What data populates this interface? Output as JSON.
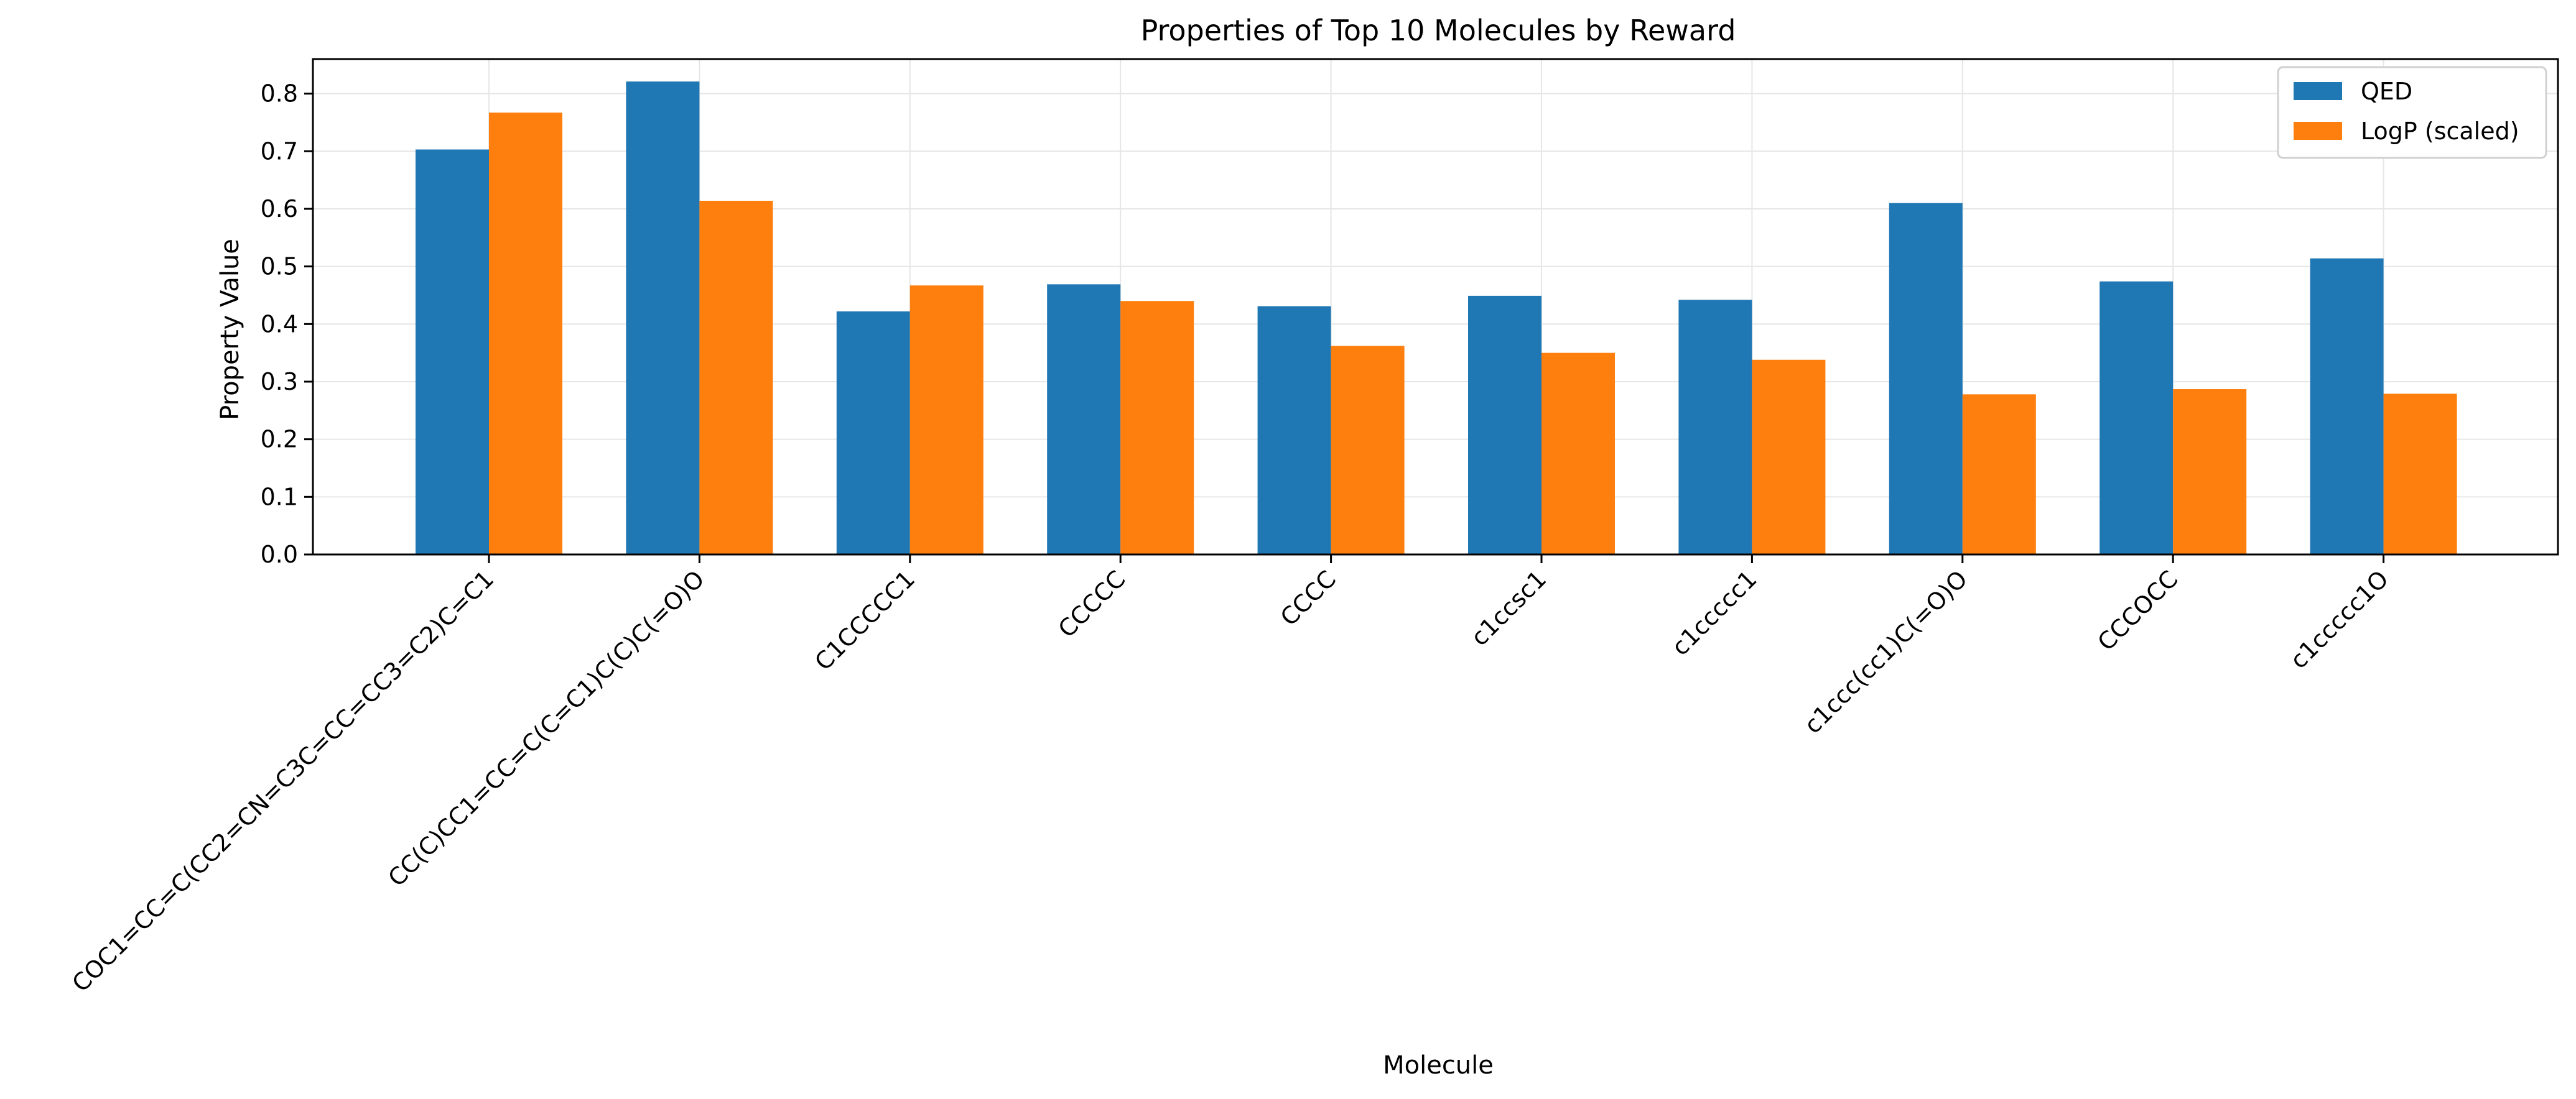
{
  "chart_data": {
    "type": "bar",
    "title": "Properties of Top 10 Molecules by Reward",
    "xlabel": "Molecule",
    "ylabel": "Property Value",
    "categories": [
      "COC1=CC=C(CC2=CN=C3C=CC=CC3=C2)C=C1",
      "CC(C)CC1=CC=C(C=C1)C(C)C(=O)O",
      "C1CCCCC1",
      "CCCCC",
      "CCCC",
      "c1ccsc1",
      "c1ccccc1",
      "c1ccc(cc1)C(=O)O",
      "CCCOCC",
      "c1ccccc1O"
    ],
    "series": [
      {
        "name": "QED",
        "color": "#1f77b4",
        "values": [
          0.703,
          0.821,
          0.422,
          0.469,
          0.431,
          0.449,
          0.442,
          0.61,
          0.474,
          0.514
        ]
      },
      {
        "name": "LogP (scaled)",
        "color": "#ff7f0e",
        "values": [
          0.767,
          0.614,
          0.467,
          0.44,
          0.362,
          0.35,
          0.338,
          0.278,
          0.287,
          0.279
        ]
      }
    ],
    "ylim": [
      0,
      0.86
    ],
    "yticks": [
      "0.0",
      "0.1",
      "0.2",
      "0.3",
      "0.4",
      "0.5",
      "0.6",
      "0.7",
      "0.8"
    ],
    "grid": true,
    "legend_position": "top-right"
  }
}
